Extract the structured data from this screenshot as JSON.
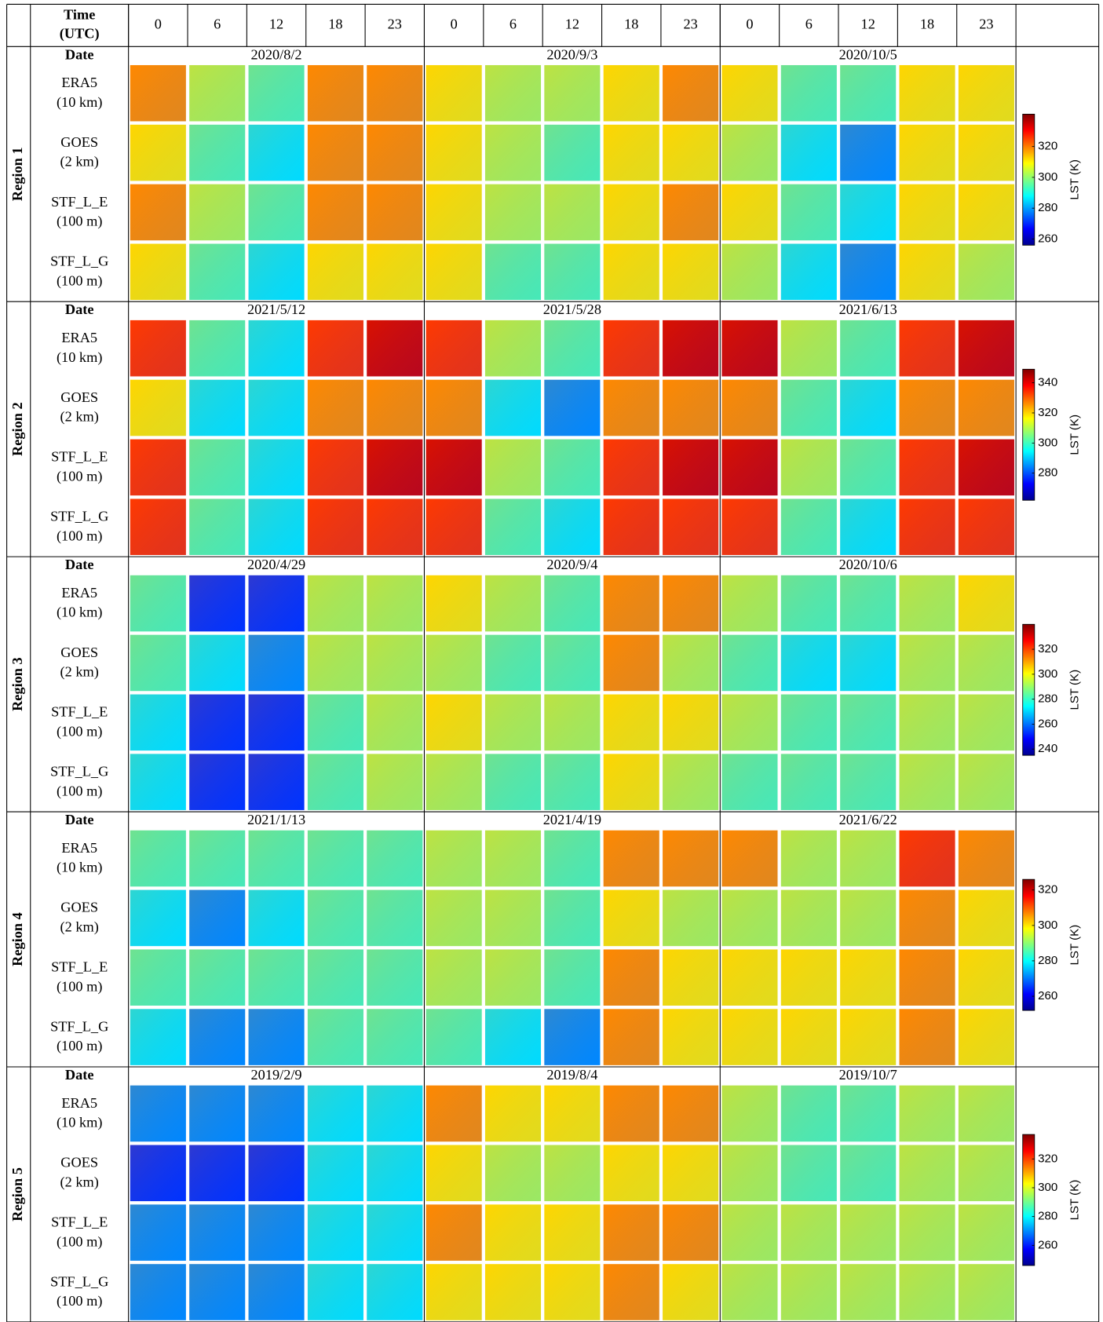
{
  "header": {
    "time_label": [
      "Time",
      "(UTC)"
    ],
    "hours": [
      0,
      6,
      12,
      18,
      23
    ]
  },
  "row_labels": [
    [
      "ERA5",
      "(10 km)"
    ],
    [
      "GOES",
      "(2 km)"
    ],
    [
      "STF_L_E",
      "(100 m)"
    ],
    [
      "STF_L_G",
      "(100 m)"
    ]
  ],
  "regions": [
    {
      "name": "Region 1",
      "date_label": "Date",
      "dates": [
        "2020/8/2",
        "2020/9/3",
        "2020/10/5"
      ],
      "colorbar": {
        "label": "LST (K)",
        "range": [
          256,
          341
        ],
        "ticks": [
          260,
          280,
          300,
          320
        ]
      }
    },
    {
      "name": "Region 2",
      "date_label": "Date",
      "dates": [
        "2021/5/12",
        "2021/5/28",
        "2021/6/13"
      ],
      "colorbar": {
        "label": "LST (K)",
        "range": [
          262,
          349
        ],
        "ticks": [
          280,
          300,
          320,
          340
        ]
      }
    },
    {
      "name": "Region 3",
      "date_label": "Date",
      "dates": [
        "2020/4/29",
        "2020/9/4",
        "2020/10/6"
      ],
      "colorbar": {
        "label": "LST (K)",
        "range": [
          235,
          340
        ],
        "ticks": [
          240,
          260,
          280,
          300,
          320
        ]
      }
    },
    {
      "name": "Region 4",
      "date_label": "Date",
      "dates": [
        "2021/1/13",
        "2021/4/19",
        "2021/6/22"
      ],
      "colorbar": {
        "label": "LST (K)",
        "range": [
          252,
          326
        ],
        "ticks": [
          260,
          280,
          300,
          320
        ]
      }
    },
    {
      "name": "Region 5",
      "date_label": "Date",
      "dates": [
        "2019/2/9",
        "2019/8/4",
        "2019/10/7"
      ],
      "colorbar": {
        "label": "LST (K)",
        "range": [
          246,
          337
        ],
        "ticks": [
          260,
          280,
          300,
          320
        ]
      }
    }
  ]
}
